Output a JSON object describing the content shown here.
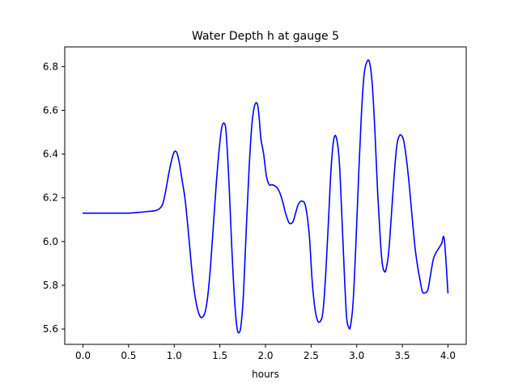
{
  "chart_data": {
    "type": "line",
    "title": "Water Depth h at gauge 5",
    "xlabel": "hours",
    "ylabel": "",
    "xlim": [
      -0.2,
      4.2
    ],
    "ylim": [
      5.53,
      6.89
    ],
    "xticks": [
      0.0,
      0.5,
      1.0,
      1.5,
      2.0,
      2.5,
      3.0,
      3.5,
      4.0
    ],
    "xtick_labels": [
      "0.0",
      "0.5",
      "1.0",
      "1.5",
      "2.0",
      "2.5",
      "3.0",
      "3.5",
      "4.0"
    ],
    "yticks": [
      5.6,
      5.8,
      6.0,
      6.2,
      6.4,
      6.6,
      6.8
    ],
    "ytick_labels": [
      "5.6",
      "5.8",
      "6.0",
      "6.2",
      "6.4",
      "6.6",
      "6.8"
    ],
    "grid": false,
    "series": [
      {
        "color": "#0000ff",
        "x": [
          0.0,
          0.2,
          0.4,
          0.5,
          0.6,
          0.7,
          0.8,
          0.85,
          0.88,
          0.91,
          0.94,
          0.97,
          1.0,
          1.03,
          1.06,
          1.09,
          1.12,
          1.16,
          1.2,
          1.24,
          1.28,
          1.31,
          1.34,
          1.37,
          1.4,
          1.43,
          1.46,
          1.49,
          1.52,
          1.55,
          1.57,
          1.6,
          1.63,
          1.66,
          1.69,
          1.72,
          1.74,
          1.76,
          1.79,
          1.82,
          1.85,
          1.88,
          1.91,
          1.93,
          1.95,
          1.98,
          2.01,
          2.04,
          2.07,
          2.1,
          2.13,
          2.16,
          2.19,
          2.22,
          2.26,
          2.3,
          2.33,
          2.36,
          2.4,
          2.44,
          2.48,
          2.51,
          2.54,
          2.57,
          2.6,
          2.63,
          2.66,
          2.69,
          2.72,
          2.75,
          2.78,
          2.81,
          2.84,
          2.87,
          2.89,
          2.91,
          2.93,
          2.96,
          2.99,
          3.02,
          3.05,
          3.08,
          3.11,
          3.14,
          3.17,
          3.2,
          3.23,
          3.26,
          3.28,
          3.3,
          3.32,
          3.35,
          3.38,
          3.41,
          3.44,
          3.47,
          3.5,
          3.52,
          3.55,
          3.58,
          3.61,
          3.64,
          3.67,
          3.7,
          3.72,
          3.75,
          3.78,
          3.81,
          3.84,
          3.87,
          3.9,
          3.93,
          3.96,
          4.0
        ],
        "y": [
          6.13,
          6.13,
          6.13,
          6.13,
          6.133,
          6.137,
          6.142,
          6.155,
          6.18,
          6.24,
          6.31,
          6.37,
          6.41,
          6.405,
          6.35,
          6.27,
          6.19,
          6.02,
          5.84,
          5.72,
          5.66,
          5.655,
          5.68,
          5.76,
          5.9,
          6.08,
          6.26,
          6.41,
          6.52,
          6.54,
          6.49,
          6.27,
          5.98,
          5.74,
          5.6,
          5.59,
          5.65,
          5.77,
          6.06,
          6.33,
          6.53,
          6.62,
          6.63,
          6.57,
          6.47,
          6.4,
          6.3,
          6.26,
          6.26,
          6.255,
          6.245,
          6.22,
          6.18,
          6.13,
          6.085,
          6.09,
          6.13,
          6.17,
          6.185,
          6.16,
          6.03,
          5.83,
          5.7,
          5.64,
          5.635,
          5.68,
          5.85,
          6.09,
          6.34,
          6.47,
          6.47,
          6.36,
          6.09,
          5.8,
          5.65,
          5.61,
          5.61,
          5.72,
          5.98,
          6.29,
          6.57,
          6.76,
          6.82,
          6.82,
          6.72,
          6.5,
          6.22,
          6.0,
          5.9,
          5.865,
          5.87,
          5.95,
          6.12,
          6.3,
          6.44,
          6.485,
          6.48,
          6.45,
          6.36,
          6.24,
          6.1,
          5.97,
          5.88,
          5.81,
          5.77,
          5.765,
          5.78,
          5.85,
          5.92,
          5.95,
          5.97,
          5.99,
          6.01,
          5.765
        ]
      }
    ]
  }
}
